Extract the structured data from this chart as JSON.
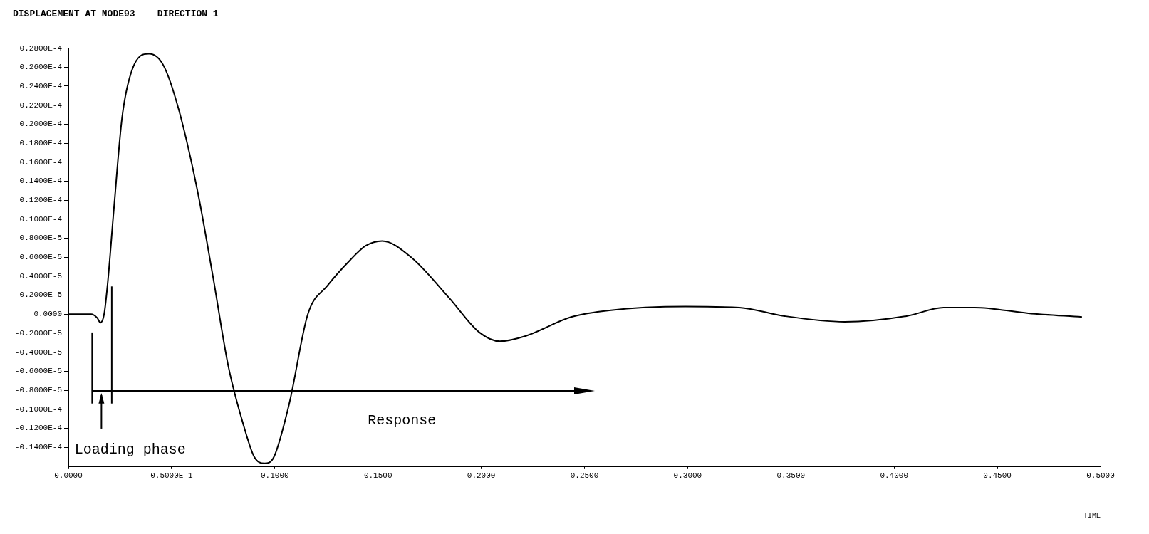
{
  "chart_data": {
    "type": "line",
    "title": "DISPLACEMENT AT NODE93    DIRECTION 1",
    "xlabel": "TIME",
    "annotations": [
      "Loading phase",
      "Response"
    ],
    "x": [
      0,
      0.011,
      0.014,
      0.0155,
      0.0173,
      0.019,
      0.022,
      0.026,
      0.031,
      0.039,
      0.046,
      0.0535,
      0.0627,
      0.07,
      0.0775,
      0.085,
      0.09,
      0.095,
      0.0996,
      0.107,
      0.116,
      0.1255,
      0.1365,
      0.144,
      0.152,
      0.166,
      0.1845,
      0.199,
      0.209,
      0.2214,
      0.2435,
      0.262,
      0.299,
      0.325,
      0.347,
      0.376,
      0.406,
      0.424,
      0.439,
      0.465,
      0.491
    ],
    "series": [
      {
        "color": "#000000",
        "values": [
          0,
          0,
          -4e-07,
          -9e-07,
          0,
          3.2e-06,
          1.1e-05,
          2.07e-05,
          2.58e-05,
          2.74e-05,
          2.62e-05,
          2.15e-05,
          1.28e-05,
          4e-06,
          -5.5e-06,
          -1.18e-05,
          -1.5e-05,
          -1.57e-05,
          -1.5e-05,
          -9.4e-06,
          0,
          3e-06,
          5.7e-06,
          7.2e-06,
          7.7e-06,
          6e-06,
          1.7e-06,
          -1.9e-06,
          -2.85e-06,
          -2.3e-06,
          -3e-07,
          4e-07,
          8e-07,
          7e-07,
          -2e-07,
          -8e-07,
          -2e-07,
          7e-07,
          7e-07,
          1e-07,
          -3e-07
        ]
      }
    ],
    "xlim": [
      0,
      0.5
    ],
    "xticks": [
      {
        "value": 0,
        "label": "0.0000"
      },
      {
        "value": 0.05,
        "label": "0.5000E-1"
      },
      {
        "value": 0.1,
        "label": "0.1000"
      },
      {
        "value": 0.15,
        "label": "0.1500"
      },
      {
        "value": 0.2,
        "label": "0.2000"
      },
      {
        "value": 0.25,
        "label": "0.2500"
      },
      {
        "value": 0.3,
        "label": "0.3000"
      },
      {
        "value": 0.35,
        "label": "0.3500"
      },
      {
        "value": 0.4,
        "label": "0.4000"
      },
      {
        "value": 0.45,
        "label": "0.4500"
      },
      {
        "value": 0.5,
        "label": "0.5000"
      }
    ],
    "ylim": [
      -1.6e-05,
      2.8e-05
    ],
    "yticks": [
      {
        "value": 2.8e-05,
        "label": "0.2800E-4"
      },
      {
        "value": 2.6e-05,
        "label": "0.2600E-4"
      },
      {
        "value": 2.4e-05,
        "label": "0.2400E-4"
      },
      {
        "value": 2.2e-05,
        "label": "0.2200E-4"
      },
      {
        "value": 2e-05,
        "label": "0.2000E-4"
      },
      {
        "value": 1.8e-05,
        "label": "0.1800E-4"
      },
      {
        "value": 1.6e-05,
        "label": "0.1600E-4"
      },
      {
        "value": 1.4e-05,
        "label": "0.1400E-4"
      },
      {
        "value": 1.2e-05,
        "label": "0.1200E-4"
      },
      {
        "value": 1e-05,
        "label": "0.1000E-4"
      },
      {
        "value": 8e-06,
        "label": "0.8000E-5"
      },
      {
        "value": 6e-06,
        "label": "0.6000E-5"
      },
      {
        "value": 4e-06,
        "label": "0.4000E-5"
      },
      {
        "value": 2e-06,
        "label": "0.2000E-5"
      },
      {
        "value": 0,
        "label": "0.0000"
      },
      {
        "value": -2e-06,
        "label": "-0.2000E-5"
      },
      {
        "value": -4e-06,
        "label": "-0.4000E-5"
      },
      {
        "value": -6e-06,
        "label": "-0.6000E-5"
      },
      {
        "value": -8e-06,
        "label": "-0.8000E-5"
      },
      {
        "value": -1e-05,
        "label": "-0.1000E-4"
      },
      {
        "value": -1.2e-05,
        "label": "-0.1200E-4"
      },
      {
        "value": -1.4e-05,
        "label": "-0.1400E-4"
      }
    ],
    "marker": "none",
    "line_style": "solid"
  }
}
